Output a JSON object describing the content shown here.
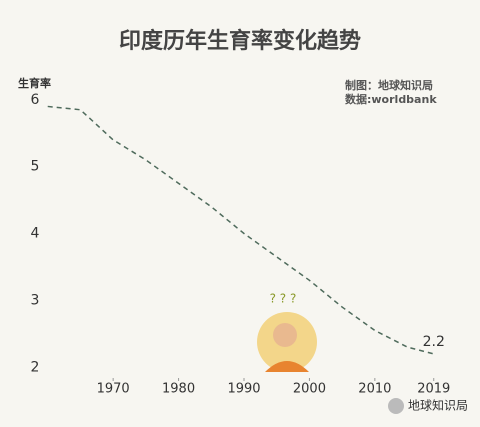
{
  "chart_data": {
    "type": "line",
    "title": "印度历年生育率变化趋势",
    "y_label": "生育率",
    "credit": "制图：地球知识局",
    "source": "数据:worldbank",
    "question": "? ? ?",
    "footer": "地球知识局",
    "x": [
      1960,
      1965,
      1970,
      1975,
      1980,
      1985,
      1990,
      1995,
      2000,
      2005,
      2010,
      2015,
      2019
    ],
    "values": [
      5.9,
      5.85,
      5.4,
      5.1,
      4.75,
      4.4,
      4.0,
      3.65,
      3.3,
      2.9,
      2.55,
      2.3,
      2.2
    ],
    "color": "#4f6b5c",
    "dashed": true,
    "xlim": [
      1955,
      2025
    ],
    "xticks": [
      1970,
      1980,
      1990,
      2000,
      2010,
      2019
    ],
    "ylim": [
      1.6,
      6.4
    ],
    "yticks": [
      2,
      3,
      4,
      5,
      6
    ],
    "grid": false
  }
}
